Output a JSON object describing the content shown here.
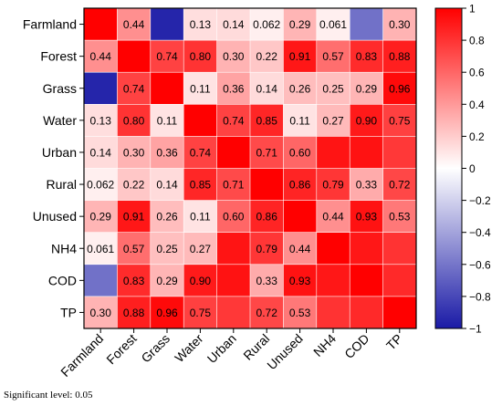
{
  "chart_data": {
    "type": "heatmap",
    "labels": [
      "Farmland",
      "Forest",
      "Grass",
      "Water",
      "Urban",
      "Rural",
      "Unused",
      "NH4",
      "COD",
      "TP"
    ],
    "color_range": [
      -1,
      1
    ],
    "colorbar_ticks": [
      "1",
      "0.8",
      "0.6",
      "0.4",
      "0.2",
      "0",
      "−0.2",
      "−0.4",
      "−0.6",
      "−0.8",
      "−1"
    ],
    "colors": {
      "negative": "#1a1aa6",
      "zero": "#ffffff",
      "positive": "#ff0000"
    },
    "matrix": [
      [
        1.0,
        0.44,
        -0.95,
        0.13,
        0.14,
        0.062,
        0.29,
        0.061,
        -0.62,
        0.3
      ],
      [
        0.44,
        1.0,
        0.74,
        0.8,
        0.3,
        0.22,
        0.91,
        0.57,
        0.83,
        0.88
      ],
      [
        -0.95,
        0.74,
        1.0,
        0.11,
        0.36,
        0.14,
        0.26,
        0.25,
        0.29,
        0.96
      ],
      [
        0.13,
        0.8,
        0.11,
        1.0,
        0.74,
        0.85,
        0.11,
        0.27,
        0.9,
        0.75
      ],
      [
        0.14,
        0.3,
        0.36,
        0.74,
        1.0,
        0.71,
        0.6,
        0.92,
        0.93,
        0.78
      ],
      [
        0.062,
        0.22,
        0.14,
        0.85,
        0.71,
        1.0,
        0.86,
        0.79,
        0.33,
        0.72
      ],
      [
        0.29,
        0.91,
        0.26,
        0.11,
        0.6,
        0.86,
        1.0,
        0.44,
        0.93,
        0.53
      ],
      [
        0.061,
        0.57,
        0.25,
        0.27,
        0.92,
        0.79,
        0.44,
        1.0,
        0.91,
        0.8
      ],
      [
        -0.62,
        0.83,
        0.29,
        0.9,
        0.93,
        0.33,
        0.93,
        0.91,
        1.0,
        0.84
      ],
      [
        0.3,
        0.88,
        0.96,
        0.75,
        0.78,
        0.72,
        0.53,
        0.8,
        0.84,
        1.0
      ]
    ],
    "cell_labels": [
      [
        "",
        "0.44",
        "",
        "0.13",
        "0.14",
        "0.062",
        "0.29",
        "0.061",
        "",
        "0.30"
      ],
      [
        "0.44",
        "",
        "0.74",
        "0.80",
        "0.30",
        "0.22",
        "0.91",
        "0.57",
        "0.83",
        "0.88"
      ],
      [
        "",
        "0.74",
        "",
        "0.11",
        "0.36",
        "0.14",
        "0.26",
        "0.25",
        "0.29",
        "0.96"
      ],
      [
        "0.13",
        "0.80",
        "0.11",
        "",
        "0.74",
        "0.85",
        "0.11",
        "0.27",
        "0.90",
        "0.75"
      ],
      [
        "0.14",
        "0.30",
        "0.36",
        "0.74",
        "",
        "0.71",
        "0.60",
        "",
        "",
        ""
      ],
      [
        "0.062",
        "0.22",
        "0.14",
        "0.85",
        "0.71",
        "",
        "0.86",
        "0.79",
        "0.33",
        "0.72"
      ],
      [
        "0.29",
        "0.91",
        "0.26",
        "0.11",
        "0.60",
        "0.86",
        "",
        "0.44",
        "0.93",
        "0.53"
      ],
      [
        "0.061",
        "0.57",
        "0.25",
        "0.27",
        "",
        "0.79",
        "0.44",
        "",
        "",
        ""
      ],
      [
        "",
        "0.83",
        "0.29",
        "0.90",
        "",
        "0.33",
        "0.93",
        "",
        "",
        ""
      ],
      [
        "0.30",
        "0.88",
        "0.96",
        "0.75",
        "",
        "0.72",
        "0.53",
        "",
        "",
        ""
      ]
    ]
  },
  "footnote": "Significant level: 0.05"
}
